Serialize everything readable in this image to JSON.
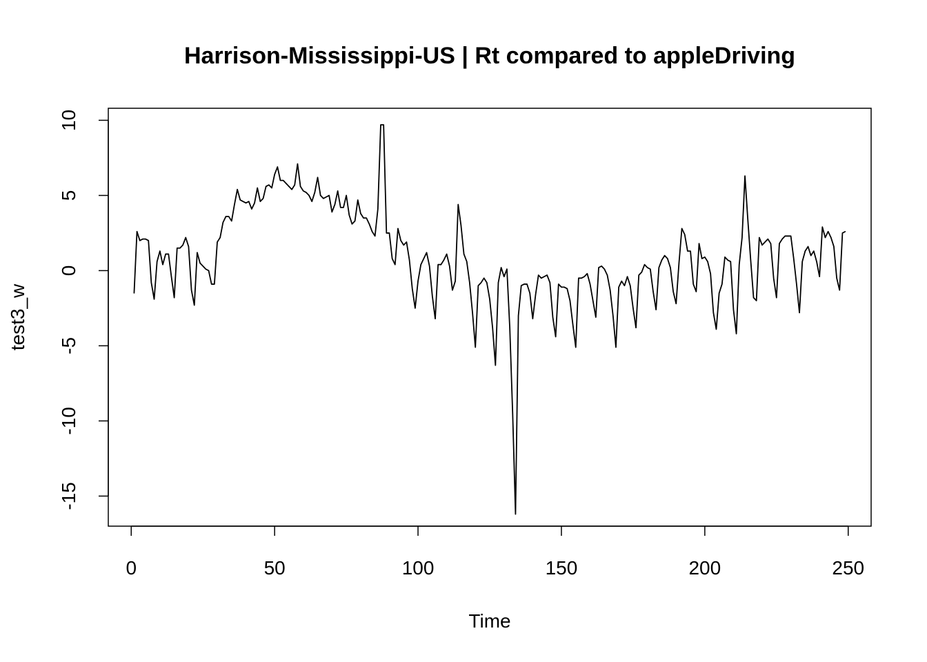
{
  "chart_data": {
    "type": "line",
    "title": "Harrison-Mississippi-US | Rt compared to appleDriving",
    "xlabel": "Time",
    "ylabel": "test3_w",
    "xlim": [
      -8,
      258
    ],
    "ylim": [
      -17.0,
      10.8
    ],
    "x_ticks": [
      0,
      50,
      100,
      150,
      200,
      250
    ],
    "y_ticks": [
      -15,
      -10,
      -5,
      0,
      5,
      10
    ],
    "x_tick_labels": [
      "0",
      "50",
      "100",
      "150",
      "200",
      "250"
    ],
    "y_tick_labels": [
      "-15",
      "-10",
      "-5",
      "0",
      "5",
      "10"
    ],
    "grid": false,
    "legend": "none",
    "line_color": "#000000",
    "series": [
      {
        "x_start": 1,
        "x_step": 1,
        "values": [
          -1.5,
          2.6,
          2.0,
          2.1,
          2.1,
          2.0,
          -0.8,
          -1.9,
          0.6,
          1.3,
          0.4,
          1.1,
          1.1,
          -0.4,
          -1.8,
          1.5,
          1.5,
          1.7,
          2.2,
          1.6,
          -1.3,
          -2.3,
          1.2,
          0.5,
          0.3,
          0.1,
          0.0,
          -0.9,
          -0.9,
          1.9,
          2.2,
          3.2,
          3.6,
          3.6,
          3.3,
          4.4,
          5.4,
          4.7,
          4.6,
          4.5,
          4.6,
          4.1,
          4.5,
          5.5,
          4.6,
          4.8,
          5.6,
          5.7,
          5.5,
          6.4,
          6.9,
          6.0,
          6.0,
          5.8,
          5.6,
          5.4,
          5.7,
          7.1,
          5.6,
          5.3,
          5.2,
          5.0,
          4.6,
          5.2,
          6.2,
          5.0,
          4.8,
          4.9,
          5.0,
          3.9,
          4.4,
          5.3,
          4.2,
          4.2,
          5.0,
          3.7,
          3.1,
          3.3,
          4.7,
          3.8,
          3.5,
          3.5,
          3.1,
          2.6,
          2.3,
          4.1,
          9.7,
          9.7,
          2.5,
          2.5,
          0.8,
          0.4,
          2.8,
          2.0,
          1.7,
          1.9,
          0.7,
          -1.2,
          -2.5,
          -0.7,
          0.4,
          0.8,
          1.2,
          0.3,
          -1.7,
          -3.2,
          0.4,
          0.4,
          0.7,
          1.1,
          0.3,
          -1.3,
          -0.7,
          4.4,
          3.0,
          1.1,
          0.6,
          -0.8,
          -2.8,
          -5.1,
          -1.0,
          -0.8,
          -0.5,
          -0.8,
          -1.9,
          -3.8,
          -6.3,
          -0.8,
          0.2,
          -0.4,
          0.1,
          -3.8,
          -9.5,
          -16.2,
          -3.0,
          -1.0,
          -0.9,
          -0.9,
          -1.5,
          -3.2,
          -1.6,
          -0.3,
          -0.5,
          -0.4,
          -0.3,
          -0.8,
          -3.1,
          -4.4,
          -0.9,
          -1.1,
          -1.1,
          -1.2,
          -2.0,
          -3.6,
          -5.1,
          -0.5,
          -0.5,
          -0.4,
          -0.2,
          -0.9,
          -2.0,
          -3.1,
          0.2,
          0.3,
          0.1,
          -0.3,
          -1.3,
          -3.0,
          -5.1,
          -1.1,
          -0.7,
          -1.0,
          -0.4,
          -1.0,
          -2.5,
          -3.8,
          -0.3,
          -0.1,
          0.4,
          0.2,
          0.1,
          -1.4,
          -2.6,
          0.2,
          0.7,
          1.0,
          0.8,
          0.2,
          -1.4,
          -2.2,
          0.5,
          2.8,
          2.4,
          1.3,
          1.3,
          -0.9,
          -1.4,
          1.8,
          0.8,
          0.9,
          0.6,
          -0.2,
          -2.8,
          -3.9,
          -1.5,
          -0.9,
          0.9,
          0.7,
          0.6,
          -2.6,
          -4.2,
          0.4,
          2.2,
          6.3,
          3.4,
          0.7,
          -1.8,
          -2.0,
          2.2,
          1.7,
          1.9,
          2.1,
          1.8,
          -0.5,
          -1.8,
          1.8,
          2.1,
          2.3,
          2.3,
          2.3,
          0.8,
          -0.9,
          -2.8,
          0.6,
          1.3,
          1.6,
          1.0,
          1.3,
          0.6,
          -0.4,
          2.9,
          2.2,
          2.6,
          2.2,
          1.6,
          -0.5,
          -1.3,
          2.5,
          2.6
        ]
      }
    ]
  }
}
